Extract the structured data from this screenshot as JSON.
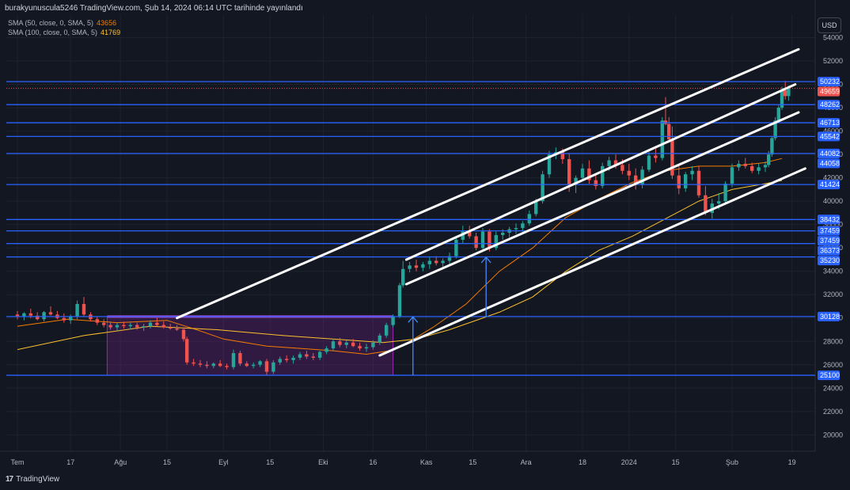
{
  "header": {
    "title": "burakyunuscula5246 TradingView.com, Şub 14, 2024 06:14 UTC tarihinde yayınlandı",
    "indicators": [
      {
        "label": "SMA (50, close, 0, SMA, 5)",
        "value": "43656",
        "color": "#f57c00"
      },
      {
        "label": "SMA (100, close, 0, SMA, 5)",
        "value": "41769",
        "color": "#fbc02d"
      }
    ]
  },
  "currency_button": "USD",
  "footer": {
    "logo_mark": "17",
    "brand": "TradingView"
  },
  "colors": {
    "background": "#131722",
    "up": "#26a69a",
    "down": "#ef5350",
    "hline": "#2962ff",
    "channel": "#ffffff",
    "box": "#9c27b0",
    "grid": "#1e222d"
  },
  "chart_data": {
    "type": "candlestick",
    "currency": "USD",
    "ylim": [
      18600,
      56000
    ],
    "y_ticks": [
      20000,
      22000,
      24000,
      26000,
      28000,
      30000,
      32000,
      34000,
      36000,
      38000,
      40000,
      42000,
      44000,
      46000,
      48000,
      50000,
      52000,
      54000
    ],
    "x_ticks": [
      {
        "label": "Tem",
        "day": 0
      },
      {
        "label": "17",
        "day": 16
      },
      {
        "label": "Ağu",
        "day": 31
      },
      {
        "label": "15",
        "day": 45
      },
      {
        "label": "Eyl",
        "day": 62
      },
      {
        "label": "15",
        "day": 76
      },
      {
        "label": "Eki",
        "day": 92
      },
      {
        "label": "16",
        "day": 107
      },
      {
        "label": "Kas",
        "day": 123
      },
      {
        "label": "15",
        "day": 137
      },
      {
        "label": "Ara",
        "day": 153
      },
      {
        "label": "18",
        "day": 170
      },
      {
        "label": "2024",
        "day": 184
      },
      {
        "label": "15",
        "day": 198
      },
      {
        "label": "Şub",
        "day": 215
      },
      {
        "label": "19",
        "day": 233
      }
    ],
    "price_tags": [
      {
        "value": 50232,
        "type": "level"
      },
      {
        "value": 49659,
        "type": "current"
      },
      {
        "value": 48262,
        "type": "level"
      },
      {
        "value": 46713,
        "type": "level"
      },
      {
        "value": 45542,
        "type": "level"
      },
      {
        "value": 44082,
        "type": "level"
      },
      {
        "value": 44058,
        "type": "level"
      },
      {
        "value": 41424,
        "type": "level"
      },
      {
        "value": 38432,
        "type": "level"
      },
      {
        "value": 37459,
        "type": "level"
      },
      {
        "value": 37459,
        "type": "level"
      },
      {
        "value": 36373,
        "type": "level"
      },
      {
        "value": 35230,
        "type": "level"
      },
      {
        "value": 30128,
        "type": "level"
      },
      {
        "value": 25100,
        "type": "level"
      }
    ],
    "horizontal_lines": [
      50232,
      48262,
      46713,
      45542,
      44082,
      41424,
      38432,
      37459,
      36373,
      35230,
      30128,
      25100
    ],
    "current_price": 49659,
    "range_box": {
      "x0": 27,
      "x1": 113,
      "y0": 25100,
      "y1": 30128
    },
    "channel_lines": [
      {
        "x0": 48,
        "y0": 30000,
        "x1": 235,
        "y1": 53000
      },
      {
        "x0": 117,
        "y0": 35000,
        "x1": 234,
        "y1": 50000
      },
      {
        "x0": 117,
        "y0": 32900,
        "x1": 235,
        "y1": 47600
      },
      {
        "x0": 109,
        "y0": 26800,
        "x1": 237,
        "y1": 42800
      }
    ],
    "arrows": [
      {
        "x": 119,
        "y_from": 25100,
        "y_to": 30100
      },
      {
        "x": 141,
        "y_from": 30100,
        "y_to": 35200
      }
    ],
    "sma50": [
      [
        0,
        29300
      ],
      [
        15,
        29900
      ],
      [
        30,
        29600
      ],
      [
        45,
        29800
      ],
      [
        55,
        28900
      ],
      [
        62,
        28200
      ],
      [
        75,
        27600
      ],
      [
        85,
        27400
      ],
      [
        95,
        27200
      ],
      [
        105,
        26900
      ],
      [
        112,
        27200
      ],
      [
        118,
        28000
      ],
      [
        125,
        29200
      ],
      [
        135,
        31200
      ],
      [
        145,
        34000
      ],
      [
        155,
        36000
      ],
      [
        165,
        38600
      ],
      [
        175,
        40200
      ],
      [
        185,
        41600
      ],
      [
        195,
        42600
      ],
      [
        205,
        43000
      ],
      [
        215,
        43000
      ],
      [
        225,
        43300
      ],
      [
        230,
        43656
      ]
    ],
    "sma100": [
      [
        0,
        27300
      ],
      [
        20,
        28500
      ],
      [
        40,
        29300
      ],
      [
        60,
        29000
      ],
      [
        80,
        28500
      ],
      [
        100,
        28100
      ],
      [
        110,
        27900
      ],
      [
        120,
        28200
      ],
      [
        130,
        29000
      ],
      [
        145,
        30500
      ],
      [
        155,
        31800
      ],
      [
        165,
        34000
      ],
      [
        175,
        35800
      ],
      [
        185,
        37000
      ],
      [
        195,
        38500
      ],
      [
        205,
        40000
      ],
      [
        215,
        41000
      ],
      [
        225,
        41500
      ],
      [
        230,
        41769
      ]
    ],
    "candles": [
      [
        0,
        30300,
        30600,
        29900,
        30100
      ],
      [
        2,
        30100,
        30500,
        29800,
        30400
      ],
      [
        4,
        30400,
        30800,
        30000,
        30200
      ],
      [
        6,
        30200,
        30500,
        29800,
        29900
      ],
      [
        8,
        29900,
        30600,
        29700,
        30500
      ],
      [
        10,
        30500,
        31000,
        30200,
        30300
      ],
      [
        12,
        30300,
        30600,
        29900,
        30000
      ],
      [
        14,
        30000,
        30400,
        29600,
        29800
      ],
      [
        16,
        29800,
        30300,
        29500,
        30100
      ],
      [
        18,
        30100,
        31500,
        29900,
        31200
      ],
      [
        20,
        31200,
        31800,
        30100,
        30300
      ],
      [
        22,
        30300,
        30500,
        29700,
        29900
      ],
      [
        24,
        29900,
        30100,
        29400,
        29600
      ],
      [
        26,
        29600,
        29900,
        29200,
        29400
      ],
      [
        28,
        29400,
        29700,
        29000,
        29200
      ],
      [
        30,
        29200,
        29600,
        28900,
        29400
      ],
      [
        32,
        29400,
        29700,
        29100,
        29300
      ],
      [
        34,
        29300,
        29600,
        29000,
        29400
      ],
      [
        36,
        29400,
        29600,
        29000,
        29200
      ],
      [
        38,
        29200,
        29500,
        28900,
        29300
      ],
      [
        40,
        29300,
        29800,
        29100,
        29600
      ],
      [
        42,
        29600,
        30000,
        29300,
        29400
      ],
      [
        44,
        29400,
        29700,
        29100,
        29200
      ],
      [
        46,
        29200,
        29500,
        29000,
        29100
      ],
      [
        48,
        29100,
        29400,
        28900,
        29000
      ],
      [
        50,
        29000,
        29200,
        28000,
        28200
      ],
      [
        51,
        28200,
        28400,
        26000,
        26200
      ],
      [
        53,
        26200,
        26500,
        25900,
        26100
      ],
      [
        55,
        26100,
        26400,
        25800,
        26000
      ],
      [
        57,
        26000,
        26300,
        25700,
        25900
      ],
      [
        59,
        25900,
        26200,
        25700,
        26100
      ],
      [
        61,
        26100,
        26400,
        25800,
        25900
      ],
      [
        63,
        25900,
        26100,
        25600,
        25800
      ],
      [
        65,
        25800,
        27300,
        25600,
        27000
      ],
      [
        67,
        27000,
        27200,
        25900,
        26100
      ],
      [
        69,
        26100,
        26300,
        25800,
        25900
      ],
      [
        71,
        25900,
        26200,
        25700,
        26000
      ],
      [
        73,
        26000,
        26400,
        25800,
        26300
      ],
      [
        75,
        26300,
        26500,
        25100,
        25400
      ],
      [
        77,
        25400,
        26400,
        25200,
        26200
      ],
      [
        79,
        26200,
        26700,
        26000,
        26500
      ],
      [
        81,
        26500,
        26800,
        26200,
        26400
      ],
      [
        83,
        26400,
        26800,
        26100,
        26600
      ],
      [
        85,
        26600,
        27100,
        26400,
        26900
      ],
      [
        87,
        26900,
        27200,
        26500,
        26700
      ],
      [
        89,
        26700,
        27000,
        26400,
        26600
      ],
      [
        91,
        26600,
        27200,
        26400,
        27100
      ],
      [
        93,
        27100,
        27600,
        26900,
        27400
      ],
      [
        95,
        27400,
        28200,
        27200,
        28000
      ],
      [
        97,
        28000,
        28300,
        27500,
        27700
      ],
      [
        99,
        27700,
        28100,
        27400,
        27900
      ],
      [
        101,
        27900,
        28200,
        27500,
        27600
      ],
      [
        103,
        27600,
        27900,
        27200,
        27400
      ],
      [
        105,
        27400,
        27800,
        27100,
        27500
      ],
      [
        107,
        27500,
        28100,
        27300,
        27900
      ],
      [
        109,
        27900,
        28700,
        27700,
        28500
      ],
      [
        111,
        28500,
        29600,
        28300,
        29400
      ],
      [
        113,
        29400,
        30300,
        29200,
        30100
      ],
      [
        115,
        30100,
        33000,
        30000,
        32800
      ],
      [
        116,
        32800,
        34900,
        32600,
        34200
      ],
      [
        118,
        34200,
        34800,
        33900,
        34500
      ],
      [
        120,
        34500,
        35000,
        34000,
        34300
      ],
      [
        122,
        34300,
        34800,
        34000,
        34600
      ],
      [
        124,
        34600,
        35200,
        34200,
        34900
      ],
      [
        126,
        34900,
        35300,
        34500,
        34700
      ],
      [
        128,
        34700,
        35100,
        34400,
        34900
      ],
      [
        130,
        34900,
        35600,
        34600,
        35300
      ],
      [
        132,
        35300,
        37000,
        35100,
        36700
      ],
      [
        134,
        36700,
        37900,
        36400,
        37400
      ],
      [
        136,
        37400,
        37900,
        36800,
        37000
      ],
      [
        138,
        37000,
        37300,
        35800,
        36000
      ],
      [
        140,
        36000,
        37700,
        35700,
        37400
      ],
      [
        142,
        37400,
        37600,
        35700,
        36000
      ],
      [
        144,
        36000,
        37400,
        35800,
        37100
      ],
      [
        146,
        37100,
        37600,
        36700,
        37300
      ],
      [
        148,
        37300,
        37800,
        36900,
        37600
      ],
      [
        150,
        37600,
        38100,
        37200,
        37700
      ],
      [
        152,
        37700,
        38300,
        37400,
        38100
      ],
      [
        154,
        38100,
        39200,
        37900,
        38900
      ],
      [
        156,
        38900,
        40200,
        38700,
        40000
      ],
      [
        158,
        40000,
        42600,
        39800,
        42300
      ],
      [
        160,
        42300,
        44300,
        42000,
        44000
      ],
      [
        162,
        44000,
        44600,
        43600,
        44200
      ],
      [
        164,
        44200,
        44500,
        43200,
        43600
      ],
      [
        166,
        43600,
        44100,
        40800,
        41400
      ],
      [
        168,
        41400,
        42200,
        40700,
        42000
      ],
      [
        170,
        42000,
        43200,
        41700,
        42800
      ],
      [
        172,
        42800,
        43500,
        41500,
        41800
      ],
      [
        174,
        41800,
        42300,
        41000,
        41300
      ],
      [
        176,
        41300,
        43300,
        41100,
        43000
      ],
      [
        178,
        43000,
        43800,
        42600,
        43500
      ],
      [
        180,
        43500,
        44000,
        42800,
        43100
      ],
      [
        182,
        43100,
        43600,
        42300,
        42600
      ],
      [
        184,
        42600,
        43200,
        41800,
        42200
      ],
      [
        186,
        42200,
        42800,
        41000,
        41400
      ],
      [
        188,
        41400,
        43000,
        41100,
        42700
      ],
      [
        190,
        42700,
        44200,
        42500,
        43900
      ],
      [
        192,
        43900,
        44500,
        43300,
        43700
      ],
      [
        194,
        43700,
        47200,
        43500,
        46900
      ],
      [
        195,
        46900,
        48900,
        46500,
        46600
      ],
      [
        196,
        46600,
        47200,
        45000,
        45300
      ],
      [
        197,
        45300,
        46400,
        41900,
        42200
      ],
      [
        199,
        42200,
        43200,
        40600,
        41100
      ],
      [
        201,
        41100,
        42500,
        40800,
        42300
      ],
      [
        203,
        42300,
        43000,
        41800,
        42600
      ],
      [
        205,
        42600,
        43000,
        40300,
        40500
      ],
      [
        207,
        40500,
        41300,
        38800,
        39000
      ],
      [
        209,
        39000,
        40200,
        38500,
        39800
      ],
      [
        211,
        39800,
        40700,
        39300,
        40000
      ],
      [
        213,
        40000,
        41700,
        39800,
        41500
      ],
      [
        215,
        41500,
        43200,
        41200,
        42900
      ],
      [
        217,
        42900,
        43500,
        42600,
        43200
      ],
      [
        219,
        43200,
        43700,
        42800,
        43000
      ],
      [
        221,
        43000,
        43300,
        42400,
        42600
      ],
      [
        223,
        42600,
        43200,
        42300,
        42900
      ],
      [
        225,
        42900,
        43400,
        42500,
        43100
      ],
      [
        226,
        43100,
        44300,
        42900,
        44000
      ],
      [
        227,
        44000,
        45600,
        43800,
        45400
      ],
      [
        228,
        45400,
        47200,
        45200,
        46900
      ],
      [
        229,
        46900,
        48200,
        46700,
        48000
      ],
      [
        230,
        48000,
        49800,
        47800,
        49500
      ],
      [
        231,
        49500,
        50300,
        48700,
        49000
      ],
      [
        232,
        49000,
        49900,
        48600,
        49659
      ]
    ]
  }
}
